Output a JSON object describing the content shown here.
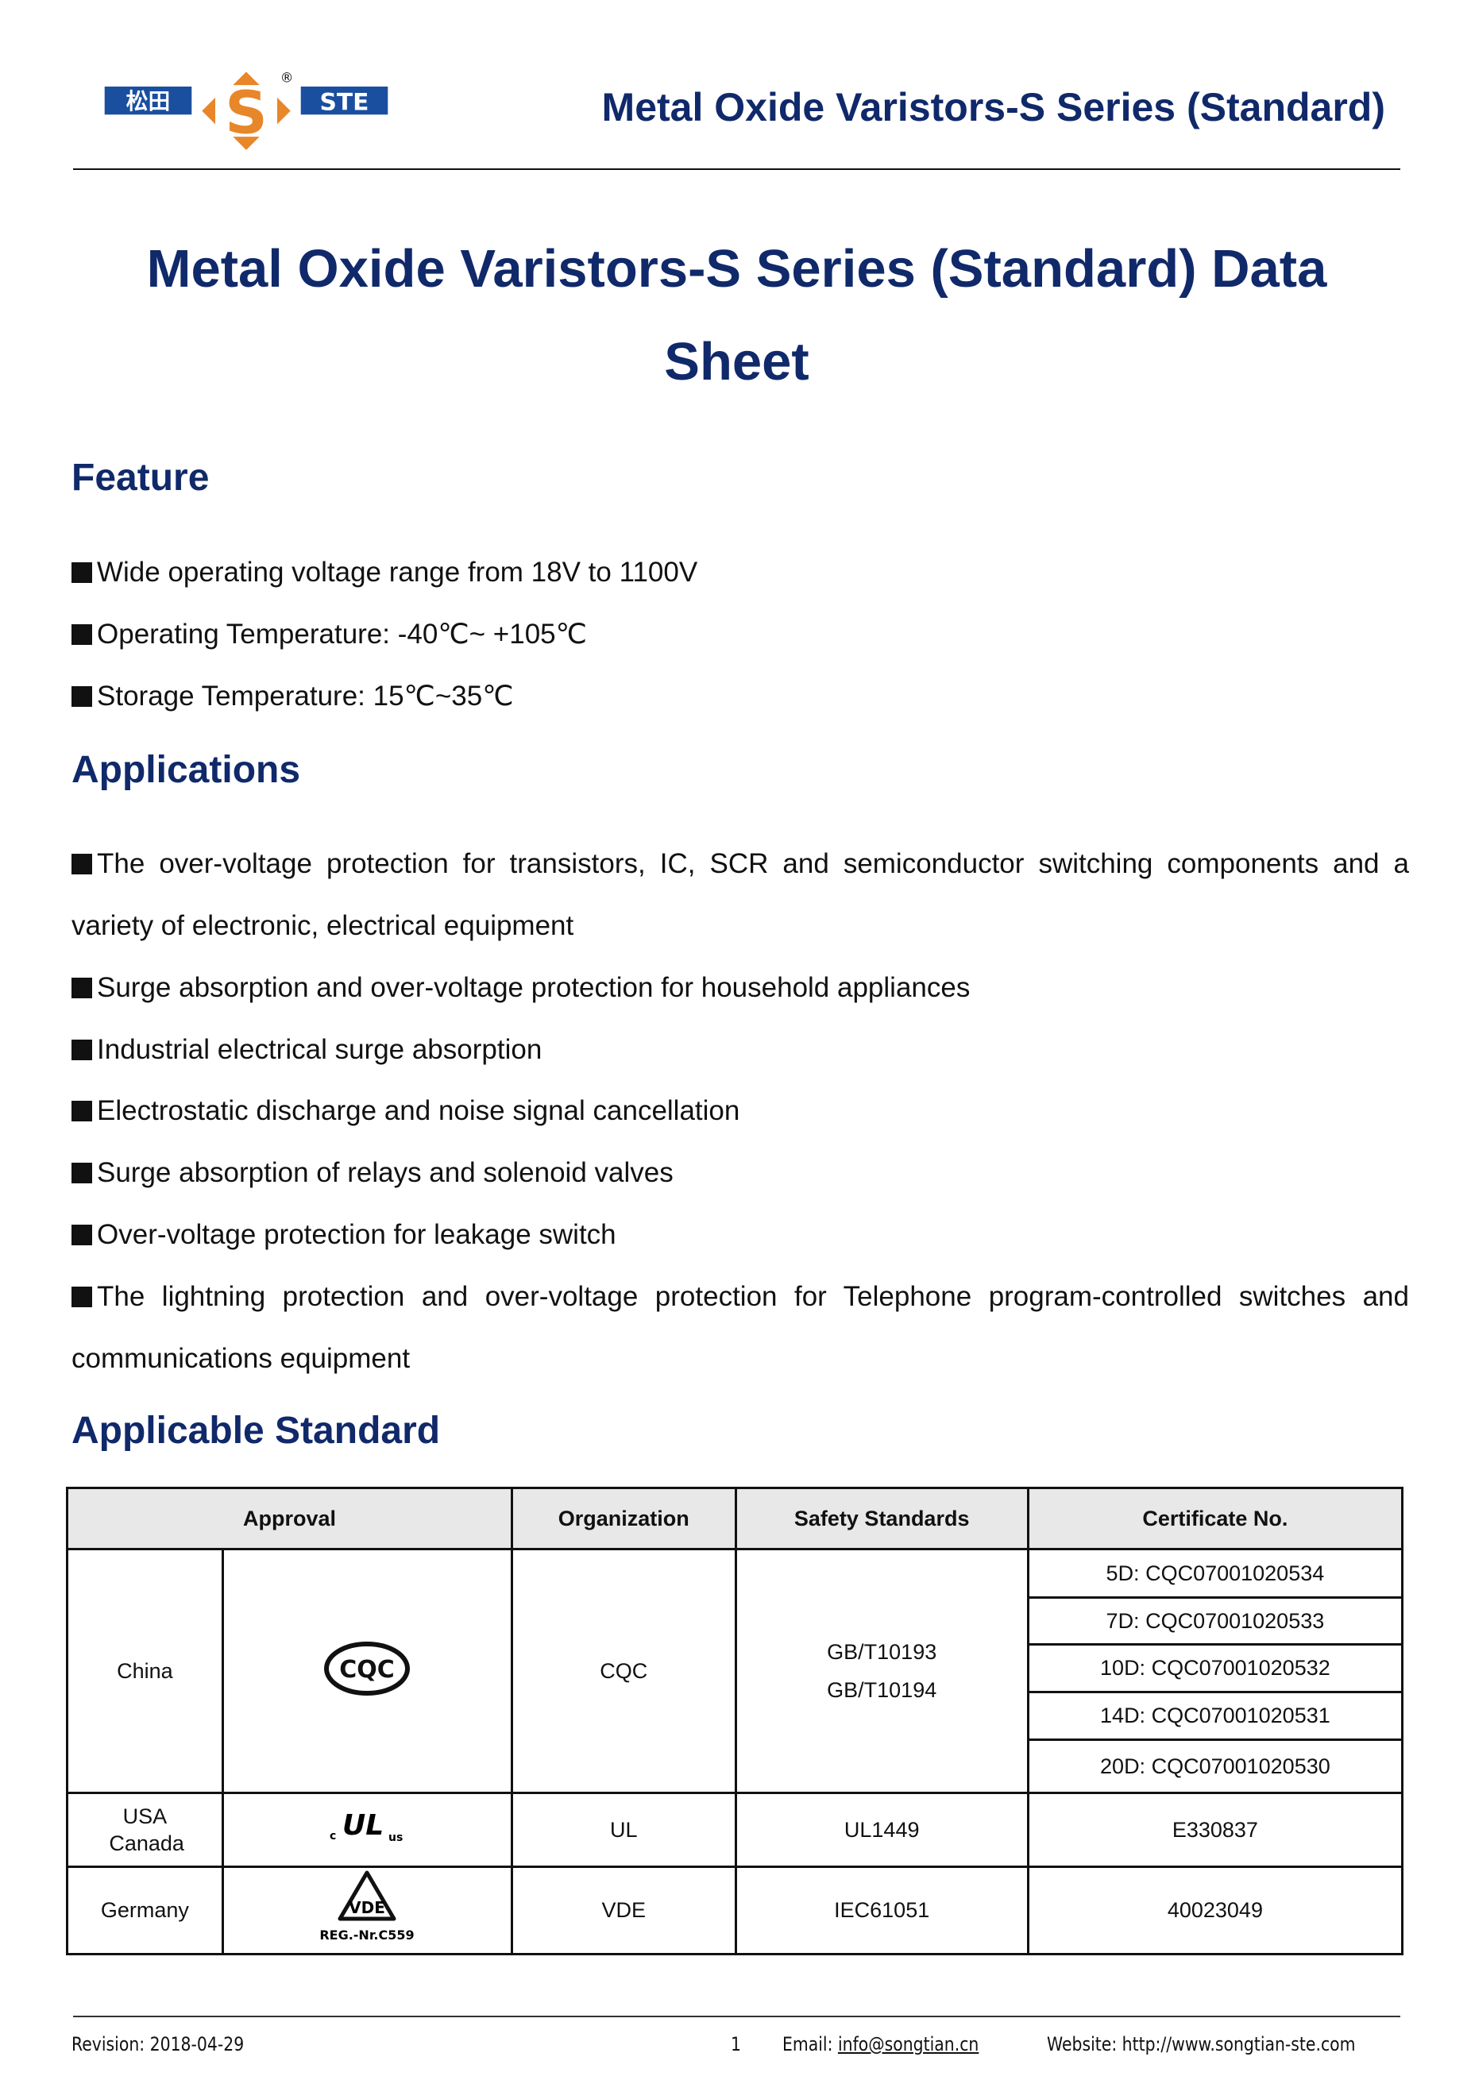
{
  "header": {
    "logo_text": "松田 STE",
    "title": "Metal Oxide Varistors-S Series (Standard)"
  },
  "main_title": "Metal Oxide Varistors-S Series (Standard) Data Sheet",
  "feature": {
    "heading": "Feature",
    "items": [
      "Wide operating voltage range from 18V to 1100V",
      "Operating Temperature: -40℃~ +105℃",
      "Storage Temperature: 15℃~35℃"
    ]
  },
  "applications": {
    "heading": "Applications",
    "items": [
      "The over-voltage protection for transistors, IC, SCR and semiconductor switching components and a variety of electronic, electrical equipment",
      "Surge absorption and over-voltage protection for household appliances",
      "Industrial electrical surge absorption",
      "Electrostatic discharge and noise signal cancellation",
      "Surge absorption of relays and solenoid valves",
      "Over-voltage protection for leakage switch",
      "The lightning protection and over-voltage protection for Telephone program-controlled switches and communications equipment"
    ]
  },
  "standard": {
    "heading": "Applicable Standard",
    "columns": [
      "Approval",
      "Organization",
      "Safety Standards",
      "Certificate No."
    ],
    "rows": [
      {
        "country": "China",
        "mark": "CQC",
        "organization": "CQC",
        "standards": [
          "GB/T10193",
          "GB/T10194"
        ],
        "certificates": [
          "5D: CQC07001020534",
          "7D: CQC07001020533",
          "10D: CQC07001020532",
          "14D: CQC07001020531",
          "20D: CQC07001020530"
        ]
      },
      {
        "country": "USA Canada",
        "mark": "c UL us",
        "organization": "UL",
        "standards": [
          "UL1449"
        ],
        "certificates": [
          "E330837"
        ]
      },
      {
        "country": "Germany",
        "mark": "VDE",
        "mark_sub": "REG.-Nr.C559",
        "organization": "VDE",
        "standards": [
          "IEC61051"
        ],
        "certificates": [
          "40023049"
        ]
      }
    ]
  },
  "footer": {
    "revision": "Revision: 2018-04-29",
    "page": "1",
    "email_label": "Email: ",
    "email": "info@songtian.cn",
    "website": "Website: http://www.songtian-ste.com"
  },
  "colors": {
    "heading": "#10296a",
    "logo_blue": "#1a4fa0",
    "logo_orange": "#e8862a"
  }
}
